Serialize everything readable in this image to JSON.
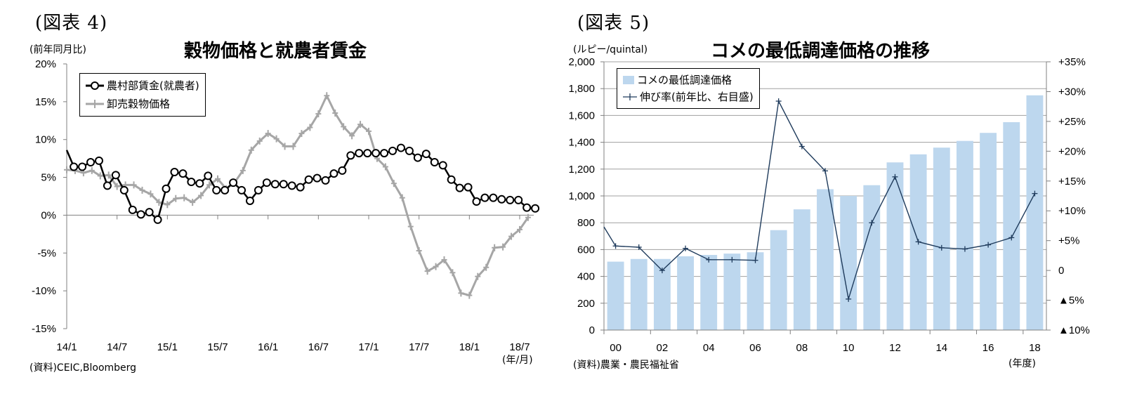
{
  "left": {
    "fig_label": "(図表 4)",
    "title": "穀物価格と就農者賃金",
    "unit": "(前年同月比)",
    "source": "(資料)CEIC,Bloomberg",
    "x_unit": "(年/月)",
    "legend": [
      "農村部賃金(就農者)",
      "卸売穀物価格"
    ]
  },
  "right": {
    "fig_label": "(図表 5)",
    "title": "コメの最低調達価格の推移",
    "unit": "(ルピー/quintal)",
    "source": "(資料)農業・農民福祉省",
    "x_unit": "(年度)",
    "legend": [
      "コメの最低調達価格",
      "伸び率(前年比、右目盛)"
    ]
  },
  "colors": {
    "wage_line": "#000000",
    "grain_line": "#a6a6a6",
    "bar_fill": "#bdd7ee",
    "growth_line": "#1f3b5c",
    "grid": "#a0a0a0",
    "axis": "#808080"
  },
  "chart_data": [
    {
      "type": "line",
      "title": "穀物価格と就農者賃金",
      "ylabel": "(前年同月比)",
      "xlabel": "(年/月)",
      "ylim": [
        -15,
        20
      ],
      "y_ticks": [
        "20%",
        "15%",
        "10%",
        "5%",
        "0%",
        "-5%",
        "-10%",
        "-15%"
      ],
      "x_ticks": [
        "14/1",
        "14/7",
        "15/1",
        "15/7",
        "16/1",
        "16/7",
        "17/1",
        "17/7",
        "18/1",
        "18/7"
      ],
      "legend_position": "top-left",
      "grid": false,
      "x_start": "14/1",
      "frequency": "monthly",
      "series": [
        {
          "name": "農村部賃金(就農者)",
          "marker": "open-circle",
          "values": [
            8.6,
            6.4,
            6.4,
            7.0,
            7.2,
            3.9,
            5.3,
            3.3,
            0.7,
            0.1,
            0.4,
            -0.6,
            3.5,
            5.7,
            5.5,
            4.4,
            4.2,
            5.2,
            3.3,
            3.3,
            4.3,
            3.3,
            1.9,
            3.3,
            4.3,
            4.1,
            4.1,
            3.9,
            3.7,
            4.7,
            4.9,
            4.6,
            5.5,
            5.9,
            7.9,
            8.2,
            8.2,
            8.2,
            8.2,
            8.5,
            8.9,
            8.5,
            7.6,
            8.1,
            7.0,
            6.6,
            4.7,
            3.6,
            3.7,
            1.8,
            2.3,
            2.3,
            2.1,
            2.0,
            2.0,
            1.0,
            0.9
          ]
        },
        {
          "name": "卸売穀物価格",
          "marker": "plus",
          "values": [
            6.0,
            5.9,
            5.6,
            5.9,
            5.2,
            5.3,
            3.8,
            4.0,
            4.0,
            3.3,
            2.8,
            1.7,
            1.4,
            2.2,
            2.3,
            1.7,
            2.6,
            4.0,
            4.8,
            3.5,
            4.3,
            5.9,
            8.6,
            9.8,
            10.8,
            10.1,
            9.1,
            9.1,
            10.8,
            11.6,
            13.4,
            15.8,
            13.5,
            11.7,
            10.5,
            12.0,
            11.1,
            7.5,
            6.4,
            4.2,
            2.3,
            -1.5,
            -4.7,
            -7.4,
            -6.8,
            -5.9,
            -7.6,
            -10.3,
            -10.6,
            -8.1,
            -6.9,
            -4.3,
            -4.2,
            -2.8,
            -1.9,
            -0.3
          ]
        }
      ]
    },
    {
      "type": "bar",
      "title": "コメの最低調達価格の推移",
      "ylabel": "(ルピー/quintal)",
      "xlabel": "(年度)",
      "ylim": [
        0,
        2000
      ],
      "y2lim": [
        -10,
        35
      ],
      "y_ticks": [
        "2,000",
        "1,800",
        "1,600",
        "1,400",
        "1,200",
        "1,000",
        "800",
        "600",
        "400",
        "200",
        "0"
      ],
      "y2_ticks": [
        "+35%",
        "+30%",
        "+25%",
        "+20%",
        "+15%",
        "+10%",
        "+5%",
        "0",
        "▲5%",
        "▲10%"
      ],
      "x_ticks": [
        "00",
        "02",
        "04",
        "06",
        "08",
        "10",
        "12",
        "14",
        "16",
        "18"
      ],
      "legend_position": "top-left",
      "grid": true,
      "categories": [
        "00",
        "01",
        "02",
        "03",
        "04",
        "05",
        "06",
        "07",
        "08",
        "09",
        "10",
        "11",
        "12",
        "13",
        "14",
        "15",
        "16",
        "17",
        "18"
      ],
      "series": [
        {
          "name": "コメの最低調達価格",
          "type": "bar",
          "axis": "left",
          "values": [
            510,
            530,
            530,
            550,
            560,
            570,
            580,
            745,
            900,
            1050,
            1000,
            1080,
            1250,
            1310,
            1360,
            1410,
            1470,
            1550,
            1750
          ]
        },
        {
          "name": "伸び率(前年比、右目盛)",
          "type": "line",
          "axis": "right",
          "marker": "plus",
          "values": [
            4.1,
            3.9,
            0.0,
            3.7,
            1.8,
            1.8,
            1.7,
            28.4,
            20.8,
            16.7,
            -4.8,
            8.0,
            15.7,
            4.8,
            3.8,
            3.6,
            4.3,
            5.5,
            12.9
          ]
        }
      ]
    }
  ]
}
